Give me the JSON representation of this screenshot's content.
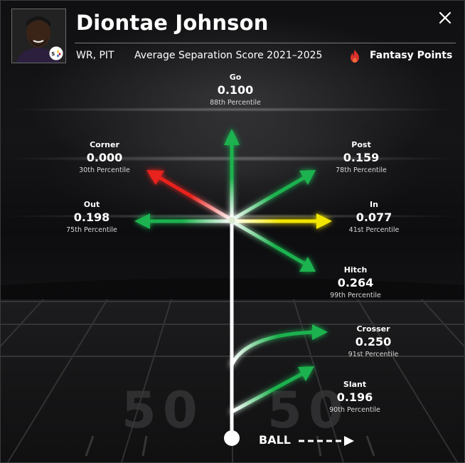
{
  "player": {
    "name": "Diontae Johnson",
    "position_team": "WR, PIT",
    "metric_title": "Average Separation Score 2021–2025",
    "fantasy_label": "Fantasy Points"
  },
  "colors": {
    "green": "#1fb24f",
    "yellow": "#f2e600",
    "red": "#e8231f",
    "white": "#ffffff"
  },
  "routes": [
    {
      "key": "go",
      "name": "Go",
      "score": "0.100",
      "percentile": "88th Percentile",
      "color": "green"
    },
    {
      "key": "corner",
      "name": "Corner",
      "score": "0.000",
      "percentile": "30th Percentile",
      "color": "red"
    },
    {
      "key": "post",
      "name": "Post",
      "score": "0.159",
      "percentile": "78th Percentile",
      "color": "green"
    },
    {
      "key": "out",
      "name": "Out",
      "score": "0.198",
      "percentile": "75th Percentile",
      "color": "green"
    },
    {
      "key": "in",
      "name": "In",
      "score": "0.077",
      "percentile": "41st Percentile",
      "color": "yellow"
    },
    {
      "key": "hitch",
      "name": "Hitch",
      "score": "0.264",
      "percentile": "99th Percentile",
      "color": "green"
    },
    {
      "key": "crosser",
      "name": "Crosser",
      "score": "0.250",
      "percentile": "91st Percentile",
      "color": "green"
    },
    {
      "key": "slant",
      "name": "Slant",
      "score": "0.196",
      "percentile": "90th Percentile",
      "color": "green"
    }
  ],
  "ball": {
    "label": "BALL"
  },
  "icons": {
    "close": "close-icon",
    "fire": "fire-icon",
    "team_logo": "steelers-logo-icon"
  }
}
